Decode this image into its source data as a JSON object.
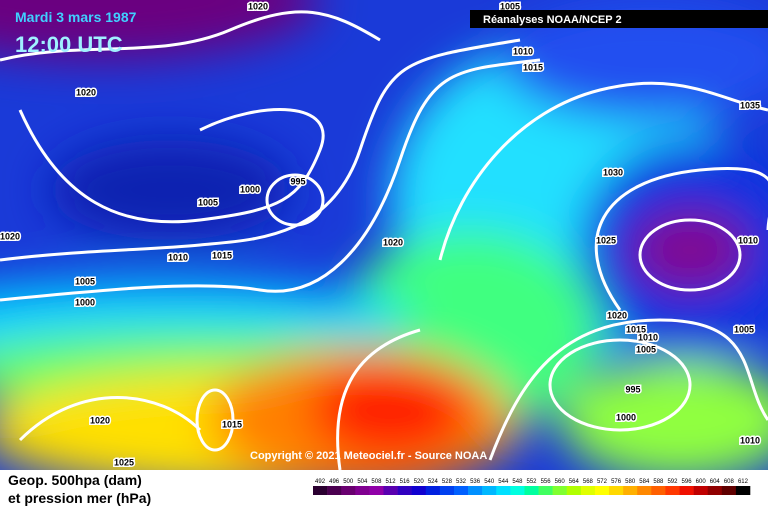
{
  "header": {
    "date": "Mardi 3 mars 1987",
    "time": "12:00 UTC",
    "source": "Réanalyses NOAA/NCEP 2"
  },
  "copyright": "Copyright © 2021 Meteociel.fr - Source NOAA",
  "footer": {
    "line1": "Geop. 500hpa (dam)",
    "line2": "et pression mer (hPa)"
  },
  "scale": {
    "labels": [
      492,
      496,
      500,
      504,
      508,
      512,
      516,
      520,
      524,
      528,
      532,
      536,
      540,
      544,
      548,
      552,
      556,
      560,
      564,
      568,
      572,
      576,
      580,
      584,
      588,
      592,
      596,
      600,
      604,
      608,
      612
    ],
    "colors": [
      "#2b0030",
      "#4b0050",
      "#6a0070",
      "#800090",
      "#9000a8",
      "#5a00b0",
      "#3000c0",
      "#1000d0",
      "#0020e0",
      "#0040f0",
      "#0060ff",
      "#0090ff",
      "#00b8ff",
      "#00e0ff",
      "#00ffe0",
      "#00ffa0",
      "#40ff60",
      "#80ff30",
      "#b0ff00",
      "#e0ff00",
      "#ffff00",
      "#ffd800",
      "#ffb000",
      "#ff8800",
      "#ff6000",
      "#ff3800",
      "#f01000",
      "#c00000",
      "#900000",
      "#600000",
      "#000000"
    ]
  },
  "isobar_labels": [
    1020,
    1005,
    1010,
    1015,
    1020,
    1035,
    1030,
    995,
    1000,
    1005,
    1020,
    1025,
    1010,
    1020,
    1010,
    1015,
    1005,
    1000,
    1020,
    1015,
    1010,
    1005,
    1005,
    995,
    1000,
    1020,
    1015,
    1010,
    1025
  ]
}
